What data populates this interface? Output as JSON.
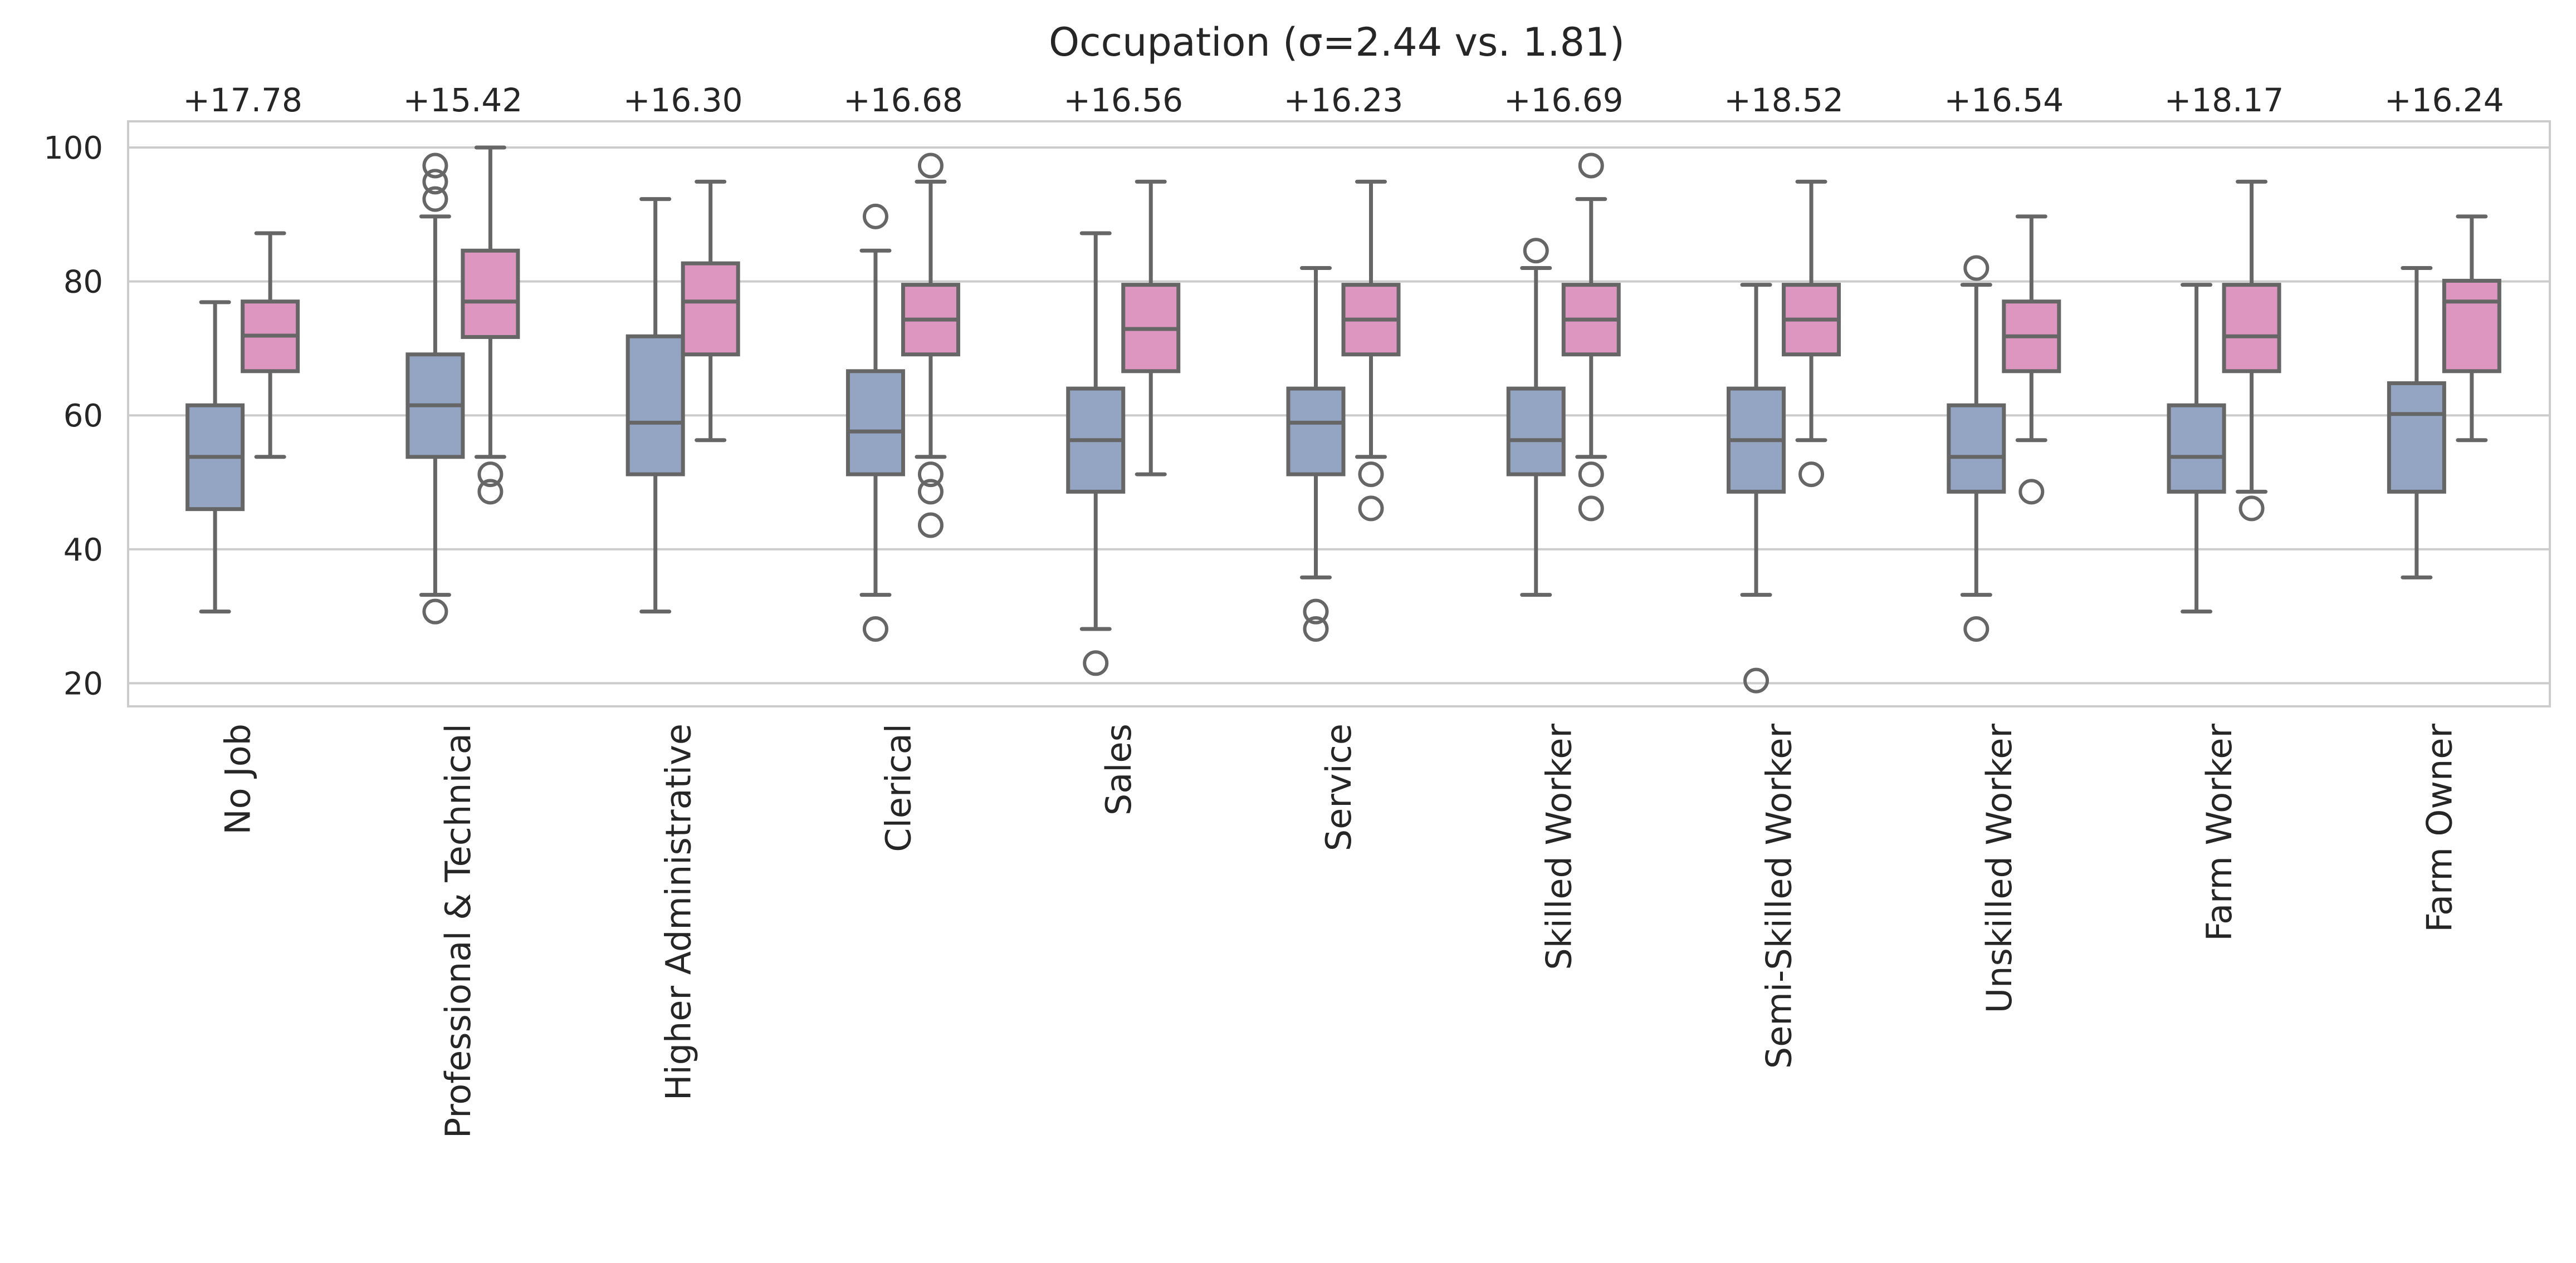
{
  "chart_data": {
    "type": "box",
    "title": "Occupation (σ=2.44 vs. 1.81)",
    "xlabel": "",
    "ylabel": "",
    "ylim": [
      16.5,
      104
    ],
    "yticks": [
      20,
      40,
      60,
      80,
      100
    ],
    "grid": "horizontal",
    "legend": "none",
    "colors": {
      "series_a": "#94a5c4",
      "series_b": "#dc96bf",
      "lines": "#666666",
      "grid": "#cccccc"
    },
    "categories": [
      "No Job",
      "Professional & Technical",
      "Higher Administrative",
      "Clerical",
      "Sales",
      "Service",
      "Skilled Worker",
      "Semi-Skilled Worker",
      "Unskilled Worker",
      "Farm Worker",
      "Farm Owner"
    ],
    "annotations": [
      "+17.78",
      "+15.42",
      "+16.30",
      "+16.68",
      "+16.56",
      "+16.23",
      "+16.69",
      "+18.52",
      "+16.54",
      "+18.17",
      "+16.24"
    ],
    "series": [
      {
        "boxes": [
          {
            "whislo": 30.7,
            "q1": 46.0,
            "med": 53.8,
            "q3": 61.5,
            "whishi": 76.9,
            "fliers": []
          },
          {
            "whislo": 33.2,
            "q1": 53.8,
            "med": 61.5,
            "q3": 69.1,
            "whishi": 89.7,
            "fliers": [
              97.3,
              94.9,
              92.3,
              30.7
            ]
          },
          {
            "whislo": 30.7,
            "q1": 51.2,
            "med": 58.9,
            "q3": 71.8,
            "whishi": 92.3,
            "fliers": []
          },
          {
            "whislo": 33.2,
            "q1": 51.2,
            "med": 57.6,
            "q3": 66.6,
            "whishi": 84.6,
            "fliers": [
              89.7,
              28.1
            ]
          },
          {
            "whislo": 28.1,
            "q1": 48.6,
            "med": 56.3,
            "q3": 64.0,
            "whishi": 87.2,
            "fliers": [
              23.0
            ]
          },
          {
            "whislo": 35.8,
            "q1": 51.2,
            "med": 58.9,
            "q3": 64.0,
            "whishi": 82.0,
            "fliers": [
              30.7,
              28.1
            ]
          },
          {
            "whislo": 33.2,
            "q1": 51.2,
            "med": 56.3,
            "q3": 64.0,
            "whishi": 82.0,
            "fliers": [
              84.6
            ]
          },
          {
            "whislo": 33.2,
            "q1": 48.6,
            "med": 56.3,
            "q3": 64.0,
            "whishi": 79.5,
            "fliers": [
              20.4
            ]
          },
          {
            "whislo": 33.2,
            "q1": 48.6,
            "med": 53.8,
            "q3": 61.5,
            "whishi": 79.5,
            "fliers": [
              82.0,
              28.1
            ]
          },
          {
            "whislo": 30.7,
            "q1": 48.6,
            "med": 53.8,
            "q3": 61.5,
            "whishi": 79.5,
            "fliers": []
          },
          {
            "whislo": 35.8,
            "q1": 48.6,
            "med": 60.2,
            "q3": 64.8,
            "whishi": 82.0,
            "fliers": []
          }
        ]
      },
      {
        "boxes": [
          {
            "whislo": 53.8,
            "q1": 66.6,
            "med": 71.9,
            "q3": 77.0,
            "whishi": 87.2,
            "fliers": []
          },
          {
            "whislo": 53.8,
            "q1": 71.7,
            "med": 77.0,
            "q3": 84.6,
            "whishi": 100.0,
            "fliers": [
              51.2,
              48.6
            ]
          },
          {
            "whislo": 56.3,
            "q1": 69.1,
            "med": 77.0,
            "q3": 82.7,
            "whishi": 94.9,
            "fliers": []
          },
          {
            "whislo": 53.8,
            "q1": 69.1,
            "med": 74.3,
            "q3": 79.5,
            "whishi": 94.9,
            "fliers": [
              97.3,
              51.2,
              48.6,
              43.6
            ]
          },
          {
            "whislo": 51.2,
            "q1": 66.6,
            "med": 72.9,
            "q3": 79.5,
            "whishi": 94.9,
            "fliers": []
          },
          {
            "whislo": 53.8,
            "q1": 69.1,
            "med": 74.3,
            "q3": 79.5,
            "whishi": 94.9,
            "fliers": [
              51.2,
              46.1
            ]
          },
          {
            "whislo": 53.8,
            "q1": 69.1,
            "med": 74.3,
            "q3": 79.5,
            "whishi": 92.3,
            "fliers": [
              97.3,
              51.2,
              46.1
            ]
          },
          {
            "whislo": 56.3,
            "q1": 69.1,
            "med": 74.3,
            "q3": 79.5,
            "whishi": 94.9,
            "fliers": [
              51.2
            ]
          },
          {
            "whislo": 56.3,
            "q1": 66.6,
            "med": 71.8,
            "q3": 77.0,
            "whishi": 89.7,
            "fliers": [
              48.6
            ]
          },
          {
            "whislo": 48.6,
            "q1": 66.6,
            "med": 71.8,
            "q3": 79.5,
            "whishi": 94.9,
            "fliers": [
              46.1
            ]
          },
          {
            "whislo": 56.3,
            "q1": 66.6,
            "med": 77.0,
            "q3": 80.1,
            "whishi": 89.7,
            "fliers": []
          }
        ]
      }
    ]
  }
}
